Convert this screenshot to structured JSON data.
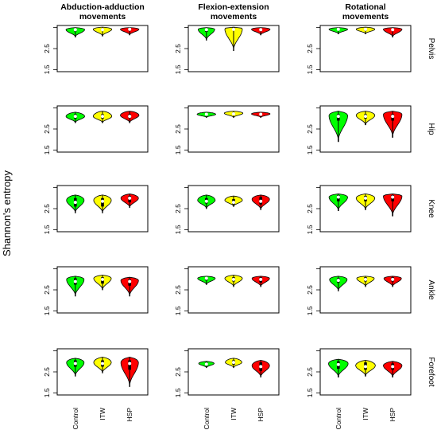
{
  "colors": {
    "Control": "#00ff00",
    "ITW": "#ffff00",
    "HSP": "#ff0000"
  },
  "chart_data": {
    "type": "violin",
    "ylabel": "Shannon's entropy",
    "ylim": [
      1.4,
      3.6
    ],
    "yticks": [
      1.5,
      2.5
    ],
    "categories": [
      "Control",
      "ITW",
      "HSP"
    ],
    "columns": [
      "Abduction-adduction movements",
      "Flexion-extension movements",
      "Rotational movements"
    ],
    "columns_display": [
      [
        "Abduction-adduction",
        "movements"
      ],
      [
        "Flexion-extension",
        "movements"
      ],
      [
        "Rotational",
        "movements"
      ]
    ],
    "rows": [
      "Pelvis",
      "Hip",
      "Knee",
      "Ankle",
      "Forefoot"
    ],
    "panels": [
      [
        [
          {
            "min": 3.05,
            "q1": 3.32,
            "median": 3.4,
            "q3": 3.46,
            "max": 3.5,
            "mode": 3.4,
            "width": 0.9
          },
          {
            "min": 3.1,
            "q1": 3.35,
            "median": 3.4,
            "q3": 3.46,
            "max": 3.52,
            "mode": 3.42,
            "width": 0.9
          },
          {
            "min": 3.15,
            "q1": 3.36,
            "median": 3.42,
            "q3": 3.46,
            "max": 3.5,
            "mode": 3.42,
            "width": 0.9
          }
        ],
        [
          {
            "min": 2.9,
            "q1": 3.3,
            "median": 3.4,
            "q3": 3.46,
            "max": 3.5,
            "mode": 3.42,
            "width": 0.8
          },
          {
            "min": 2.4,
            "q1": 3.38,
            "median": 3.42,
            "q3": 3.5,
            "max": 3.52,
            "mode": 3.45,
            "width": 0.85
          },
          {
            "min": 3.15,
            "q1": 3.35,
            "median": 3.4,
            "q3": 3.45,
            "max": 3.5,
            "mode": 3.42,
            "width": 0.9
          }
        ],
        [
          {
            "min": 3.2,
            "q1": 3.38,
            "median": 3.42,
            "q3": 3.46,
            "max": 3.5,
            "mode": 3.42,
            "width": 0.9
          },
          {
            "min": 3.2,
            "q1": 3.36,
            "median": 3.42,
            "q3": 3.46,
            "max": 3.52,
            "mode": 3.42,
            "width": 0.9
          },
          {
            "min": 3.05,
            "q1": 3.35,
            "median": 3.4,
            "q3": 3.46,
            "max": 3.5,
            "mode": 3.42,
            "width": 0.9
          }
        ]
      ],
      [
        [
          {
            "min": 2.8,
            "q1": 3.0,
            "median": 3.1,
            "q3": 3.2,
            "max": 3.3,
            "mode": 3.1,
            "width": 0.9
          },
          {
            "min": 2.8,
            "q1": 3.0,
            "median": 3.1,
            "q3": 3.2,
            "max": 3.35,
            "mode": 3.1,
            "width": 0.9
          },
          {
            "min": 2.8,
            "q1": 3.02,
            "median": 3.1,
            "q3": 3.2,
            "max": 3.35,
            "mode": 3.15,
            "width": 0.9
          }
        ],
        [
          {
            "min": 3.05,
            "q1": 3.17,
            "median": 3.2,
            "q3": 3.24,
            "max": 3.3,
            "mode": 3.2,
            "width": 0.9
          },
          {
            "min": 3.05,
            "q1": 3.18,
            "median": 3.22,
            "q3": 3.28,
            "max": 3.35,
            "mode": 3.25,
            "width": 0.9
          },
          {
            "min": 3.05,
            "q1": 3.17,
            "median": 3.2,
            "q3": 3.24,
            "max": 3.3,
            "mode": 3.22,
            "width": 0.9
          }
        ],
        [
          {
            "min": 1.9,
            "q1": 2.9,
            "median": 3.1,
            "q3": 3.2,
            "max": 3.35,
            "mode": 3.15,
            "width": 0.9
          },
          {
            "min": 2.7,
            "q1": 3.0,
            "median": 3.1,
            "q3": 3.2,
            "max": 3.35,
            "mode": 3.15,
            "width": 0.9
          },
          {
            "min": 2.1,
            "q1": 2.9,
            "median": 3.1,
            "q3": 3.2,
            "max": 3.35,
            "mode": 3.2,
            "width": 0.9
          }
        ]
      ],
      [
        [
          {
            "min": 2.3,
            "q1": 2.6,
            "median": 2.8,
            "q3": 3.0,
            "max": 3.15,
            "mode": 2.9,
            "width": 0.85
          },
          {
            "min": 2.3,
            "q1": 2.6,
            "median": 2.85,
            "q3": 3.0,
            "max": 3.15,
            "mode": 2.9,
            "width": 0.85
          },
          {
            "min": 2.55,
            "q1": 2.8,
            "median": 3.0,
            "q3": 3.1,
            "max": 3.2,
            "mode": 3.0,
            "width": 0.85
          }
        ],
        [
          {
            "min": 2.5,
            "q1": 2.75,
            "median": 2.85,
            "q3": 3.0,
            "max": 3.15,
            "mode": 2.9,
            "width": 0.85
          },
          {
            "min": 2.6,
            "q1": 2.7,
            "median": 2.8,
            "q3": 2.95,
            "max": 3.1,
            "mode": 2.9,
            "width": 0.85
          },
          {
            "min": 2.45,
            "q1": 2.7,
            "median": 2.85,
            "q3": 3.05,
            "max": 3.15,
            "mode": 2.95,
            "width": 0.85
          }
        ],
        [
          {
            "min": 2.4,
            "q1": 2.85,
            "median": 3.05,
            "q3": 3.15,
            "max": 3.2,
            "mode": 3.05,
            "width": 0.9
          },
          {
            "min": 2.45,
            "q1": 2.85,
            "median": 3.0,
            "q3": 3.1,
            "max": 3.2,
            "mode": 3.0,
            "width": 0.9
          },
          {
            "min": 2.15,
            "q1": 2.85,
            "median": 3.05,
            "q3": 3.15,
            "max": 3.2,
            "mode": 3.1,
            "width": 0.9
          }
        ]
      ],
      [
        [
          {
            "min": 2.2,
            "q1": 2.75,
            "median": 2.9,
            "q3": 3.05,
            "max": 3.15,
            "mode": 3.0,
            "width": 0.85
          },
          {
            "min": 2.5,
            "q1": 2.8,
            "median": 3.0,
            "q3": 3.1,
            "max": 3.2,
            "mode": 3.05,
            "width": 0.85
          },
          {
            "min": 2.2,
            "q1": 2.7,
            "median": 2.9,
            "q3": 3.0,
            "max": 3.1,
            "mode": 2.95,
            "width": 0.85
          }
        ],
        [
          {
            "min": 2.75,
            "q1": 2.95,
            "median": 3.05,
            "q3": 3.1,
            "max": 3.15,
            "mode": 3.05,
            "width": 0.85
          },
          {
            "min": 2.65,
            "q1": 2.9,
            "median": 3.0,
            "q3": 3.1,
            "max": 3.2,
            "mode": 3.05,
            "width": 0.85
          },
          {
            "min": 2.65,
            "q1": 2.85,
            "median": 3.0,
            "q3": 3.1,
            "max": 3.15,
            "mode": 3.05,
            "width": 0.85
          }
        ],
        [
          {
            "min": 2.45,
            "q1": 2.85,
            "median": 2.95,
            "q3": 3.05,
            "max": 3.15,
            "mode": 3.0,
            "width": 0.85
          },
          {
            "min": 2.65,
            "q1": 2.9,
            "median": 3.0,
            "q3": 3.1,
            "max": 3.15,
            "mode": 3.05,
            "width": 0.85
          },
          {
            "min": 2.65,
            "q1": 2.9,
            "median": 3.0,
            "q3": 3.1,
            "max": 3.15,
            "mode": 3.05,
            "width": 0.85
          }
        ]
      ],
      [
        [
          {
            "min": 2.3,
            "q1": 2.75,
            "median": 2.9,
            "q3": 3.05,
            "max": 3.15,
            "mode": 2.95,
            "width": 0.85
          },
          {
            "min": 2.45,
            "q1": 2.75,
            "median": 2.9,
            "q3": 3.05,
            "max": 3.2,
            "mode": 2.95,
            "width": 0.85
          },
          {
            "min": 1.8,
            "q1": 2.6,
            "median": 2.9,
            "q3": 3.05,
            "max": 3.2,
            "mode": 2.95,
            "width": 0.85
          }
        ],
        [
          {
            "min": 2.7,
            "q1": 2.8,
            "median": 2.87,
            "q3": 2.95,
            "max": 3.0,
            "mode": 2.9,
            "width": 0.75
          },
          {
            "min": 2.7,
            "q1": 2.85,
            "median": 2.95,
            "q3": 3.05,
            "max": 3.15,
            "mode": 2.95,
            "width": 0.8
          },
          {
            "min": 2.25,
            "q1": 2.55,
            "median": 2.75,
            "q3": 2.95,
            "max": 3.05,
            "mode": 2.8,
            "width": 0.85
          }
        ],
        [
          {
            "min": 2.25,
            "q1": 2.65,
            "median": 2.85,
            "q3": 3.0,
            "max": 3.1,
            "mode": 2.9,
            "width": 0.95
          },
          {
            "min": 2.3,
            "q1": 2.6,
            "median": 2.75,
            "q3": 2.95,
            "max": 3.05,
            "mode": 2.8,
            "width": 0.95
          },
          {
            "min": 2.25,
            "q1": 2.6,
            "median": 2.75,
            "q3": 2.9,
            "max": 3.0,
            "mode": 2.8,
            "width": 0.9
          }
        ]
      ]
    ]
  }
}
